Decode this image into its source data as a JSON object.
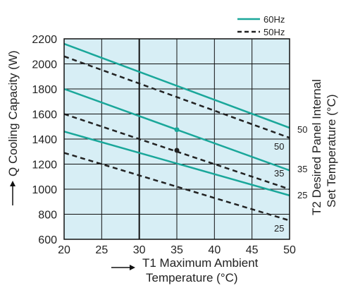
{
  "chart_data": {
    "type": "line",
    "xlabel": [
      "T1 Maximum Ambient",
      "Temperature (°C)"
    ],
    "ylabel": "Q Cooling Capacity (W)",
    "y2label": [
      "T2 Desired Panel Internal",
      "Set Temperature (°C)"
    ],
    "xlim": [
      20,
      50
    ],
    "ylim": [
      600,
      2200
    ],
    "x_ticks": [
      "20",
      "25",
      "30",
      "35",
      "40",
      "45",
      "50"
    ],
    "y_ticks": [
      "600",
      "800",
      "1000",
      "1200",
      "1400",
      "1600",
      "1800",
      "2000",
      "2200"
    ],
    "grid": true,
    "legend_position": "top-right",
    "legend": [
      {
        "label": "60Hz",
        "style": "solid",
        "color": "#1aa79a"
      },
      {
        "label": "50Hz",
        "style": "dashed",
        "color": "#222222"
      }
    ],
    "series": [
      {
        "group": "60Hz",
        "t2": "50",
        "x": [
          20,
          50
        ],
        "y": [
          2160,
          1490
        ]
      },
      {
        "group": "60Hz",
        "t2": "35",
        "x": [
          20,
          50
        ],
        "y": [
          1800,
          1150
        ]
      },
      {
        "group": "60Hz",
        "t2": "25",
        "x": [
          20,
          50
        ],
        "y": [
          1460,
          950
        ]
      },
      {
        "group": "50Hz",
        "t2": "50",
        "x": [
          20,
          50
        ],
        "y": [
          2060,
          1410
        ]
      },
      {
        "group": "50Hz",
        "t2": "35",
        "x": [
          20,
          50
        ],
        "y": [
          1600,
          1000
        ]
      },
      {
        "group": "50Hz",
        "t2": "25",
        "x": [
          20,
          50
        ],
        "y": [
          1290,
          750
        ]
      }
    ],
    "curve_labels_60Hz": [
      "50",
      "35",
      "25"
    ],
    "curve_labels_50Hz": [
      "50",
      "35",
      "25"
    ],
    "points": [
      {
        "x": 35,
        "y": 1475,
        "color": "#1aa79a"
      },
      {
        "x": 35,
        "y": 1310,
        "color": "#222222"
      }
    ]
  }
}
